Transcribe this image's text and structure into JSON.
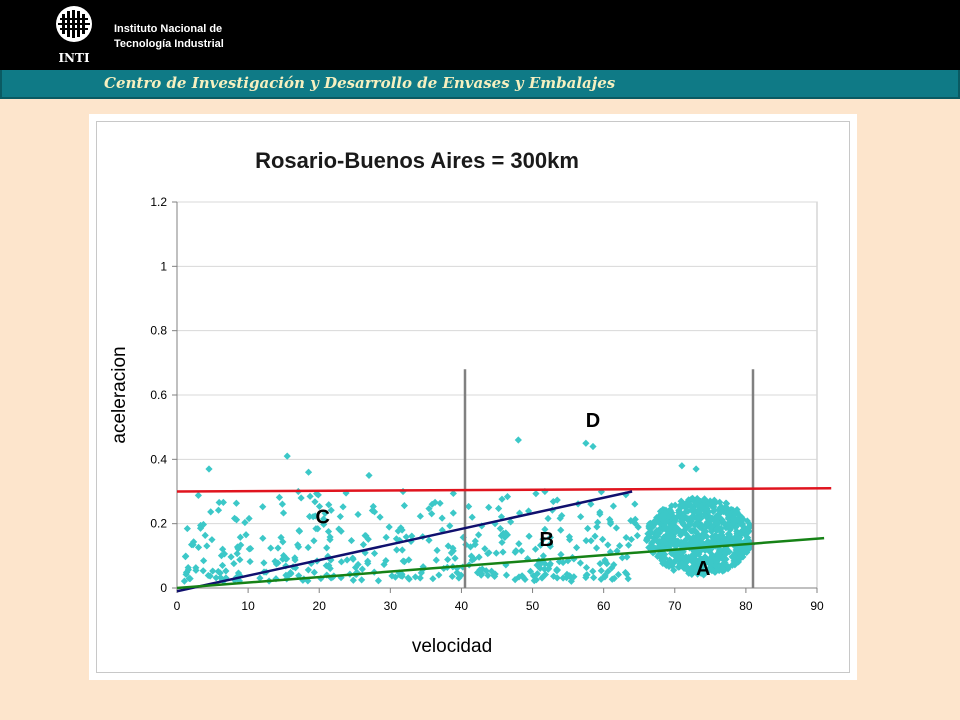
{
  "header": {
    "institution_line1": "Instituto Nacional de",
    "institution_line2": "Tecnología Industrial",
    "logo_text": "INTI",
    "center_name": "Centro de Investigación y Desarrollo de Envases y Embalajes"
  },
  "colors": {
    "header_bg": "#000000",
    "subheader_bg": "#0f7a86",
    "page_bg": "#fde5cc",
    "points": "#3cc8c8",
    "red_line": "#e0141e",
    "blue_line": "#10106e",
    "green_line": "#168216",
    "divider": "#808080"
  },
  "chart_data": {
    "type": "scatter",
    "title": "Rosario-Buenos Aires = 300km",
    "xlabel": "velocidad",
    "ylabel": "aceleracion",
    "xlim": [
      0,
      90
    ],
    "ylim": [
      0,
      1.2
    ],
    "x_ticks": [
      "0",
      "10",
      "20",
      "30",
      "40",
      "50",
      "60",
      "70",
      "80",
      "90"
    ],
    "y_ticks": [
      "0",
      "0.2",
      "0.4",
      "0.6",
      "0.8",
      "1",
      "1.2"
    ],
    "grid": "horizontal",
    "legend": "none",
    "notable_points": [
      {
        "x": 4.5,
        "y": 0.37
      },
      {
        "x": 15.5,
        "y": 0.41
      },
      {
        "x": 18.5,
        "y": 0.36
      },
      {
        "x": 27,
        "y": 0.35
      },
      {
        "x": 48,
        "y": 0.46
      },
      {
        "x": 57.5,
        "y": 0.45
      },
      {
        "x": 58.5,
        "y": 0.44
      },
      {
        "x": 71,
        "y": 0.38
      },
      {
        "x": 73,
        "y": 0.37
      }
    ],
    "point_clusters": [
      {
        "x_range": [
          1,
          65
        ],
        "y_range": [
          0,
          0.3
        ],
        "density": "scattered"
      },
      {
        "x_range": [
          65,
          81
        ],
        "y_range": [
          0.05,
          0.3
        ],
        "density": "dense"
      }
    ],
    "reference_lines": [
      {
        "x1": 0,
        "y1": 0.3,
        "x2": 92,
        "y2": 0.31,
        "color": "red"
      },
      {
        "x1": 0,
        "y1": -0.01,
        "x2": 64,
        "y2": 0.3,
        "color": "blue"
      },
      {
        "x1": 0,
        "y1": 0,
        "x2": 91,
        "y2": 0.155,
        "color": "green"
      }
    ],
    "vertical_dividers": [
      {
        "x": 40.5,
        "y_top": 0.68
      },
      {
        "x": 81,
        "y_top": 0.68
      }
    ],
    "zone_labels": [
      {
        "text": "A",
        "x": 74,
        "y": 0.04
      },
      {
        "text": "B",
        "x": 52,
        "y": 0.13
      },
      {
        "text": "C",
        "x": 20.5,
        "y": 0.2
      },
      {
        "text": "D",
        "x": 58.5,
        "y": 0.5
      }
    ]
  }
}
